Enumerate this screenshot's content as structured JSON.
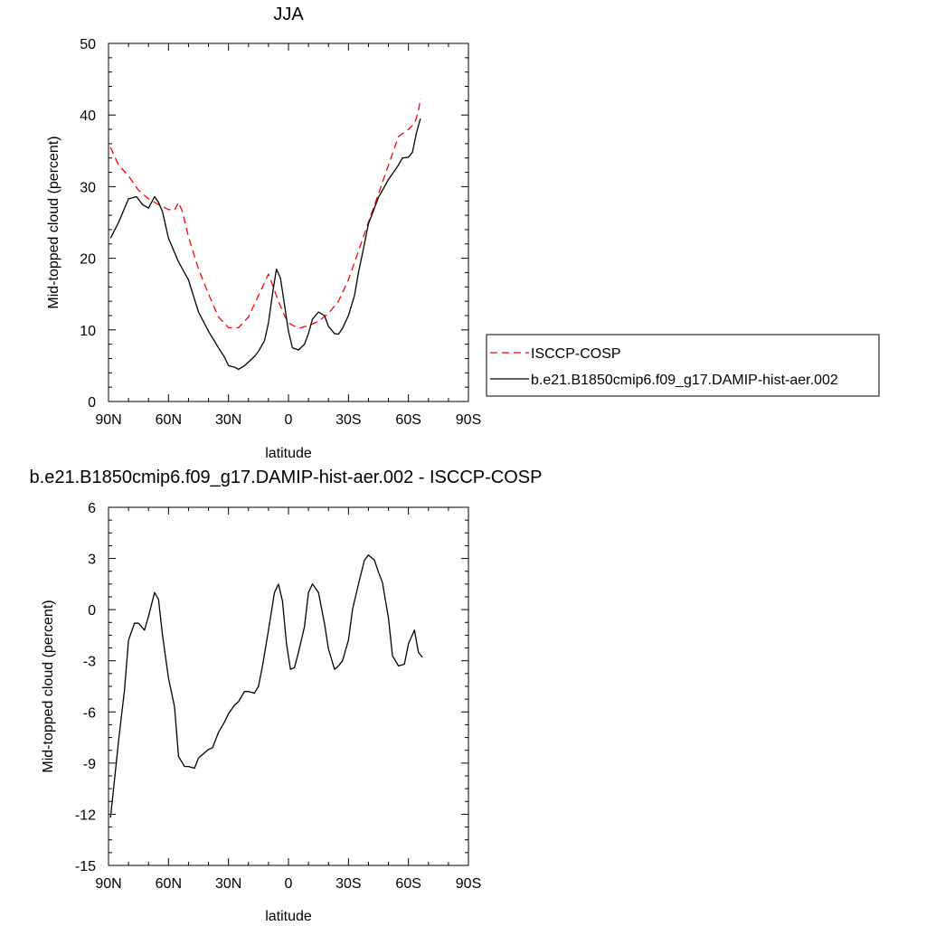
{
  "chart_data": [
    {
      "type": "line",
      "title": "JJA",
      "xlabel": "latitude",
      "ylabel": "Mid-topped cloud (percent)",
      "xlim": [
        90,
        -90
      ],
      "ylim": [
        0,
        50
      ],
      "x_ticks": [
        90,
        60,
        30,
        0,
        -30,
        -60,
        -90
      ],
      "x_tick_labels": [
        "90N",
        "60N",
        "30N",
        "0",
        "30S",
        "60S",
        "90S"
      ],
      "y_ticks": [
        0,
        10,
        20,
        30,
        40,
        50
      ],
      "y_tick_labels": [
        "0",
        "10",
        "20",
        "30",
        "40",
        "50"
      ],
      "legend_position": "right",
      "series": [
        {
          "name": "ISCCP-COSP",
          "color": "#ff0000",
          "dash": "dashed",
          "x": [
            89,
            85,
            80,
            75,
            70,
            65,
            60,
            57,
            55,
            53,
            50,
            45,
            40,
            35,
            30,
            25,
            20,
            15,
            10,
            5,
            2,
            0,
            -5,
            -10,
            -15,
            -20,
            -25,
            -30,
            -35,
            -40,
            -45,
            -50,
            -55,
            -60,
            -63,
            -65,
            -66
          ],
          "y": [
            35.5,
            33.0,
            31.5,
            29.5,
            28.3,
            27.5,
            26.8,
            26.7,
            27.8,
            26.5,
            23.0,
            18.5,
            15.0,
            11.8,
            10.3,
            10.3,
            11.8,
            14.8,
            17.8,
            14.0,
            12.0,
            11.0,
            10.2,
            10.6,
            11.2,
            12.3,
            14.0,
            17.0,
            21.0,
            25.0,
            29.0,
            33.0,
            37.0,
            38.0,
            38.8,
            40.5,
            42.3
          ]
        },
        {
          "name": "b.e21.B1850cmip6.f09_g17.DAMIP-hist-aer.002",
          "color": "#000000",
          "dash": "solid",
          "x": [
            89,
            85,
            80,
            76,
            73,
            70,
            67,
            65,
            63,
            60,
            55,
            50,
            45,
            40,
            35,
            32,
            30,
            27,
            25,
            22,
            20,
            17,
            15,
            12,
            10,
            8,
            6,
            4,
            2,
            0,
            -2,
            -5,
            -8,
            -10,
            -12,
            -15,
            -18,
            -20,
            -23,
            -25,
            -27,
            -30,
            -33,
            -35,
            -38,
            -40,
            -45,
            -50,
            -55,
            -57,
            -60,
            -62,
            -64,
            -66
          ],
          "y": [
            22.8,
            25.0,
            28.3,
            28.6,
            27.5,
            27.0,
            28.6,
            27.8,
            26.5,
            22.8,
            19.5,
            17.0,
            12.5,
            9.8,
            7.5,
            6.2,
            5.0,
            4.8,
            4.5,
            5.0,
            5.5,
            6.3,
            7.0,
            8.5,
            11.0,
            15.0,
            18.5,
            17.2,
            13.5,
            9.8,
            7.5,
            7.2,
            8.0,
            9.5,
            11.5,
            12.5,
            12.0,
            10.5,
            9.5,
            9.4,
            10.2,
            12.0,
            14.8,
            18.0,
            22.0,
            24.8,
            28.5,
            31.0,
            33.0,
            34.0,
            34.1,
            34.8,
            37.5,
            39.5
          ]
        }
      ]
    },
    {
      "type": "line",
      "title": "b.e21.B1850cmip6.f09_g17.DAMIP-hist-aer.002 - ISCCP-COSP",
      "xlabel": "latitude",
      "ylabel": "Mid-topped cloud (percent)",
      "xlim": [
        90,
        -90
      ],
      "ylim": [
        -15,
        6
      ],
      "x_ticks": [
        90,
        60,
        30,
        0,
        -30,
        -60,
        -90
      ],
      "x_tick_labels": [
        "90N",
        "60N",
        "30N",
        "0",
        "30S",
        "60S",
        "90S"
      ],
      "y_ticks": [
        -15,
        -12,
        -9,
        -6,
        -3,
        0,
        3,
        6
      ],
      "y_tick_labels": [
        "-15",
        "-12",
        "-9",
        "-6",
        "-3",
        "0",
        "3",
        "6"
      ],
      "series": [
        {
          "color": "#000000",
          "dash": "solid",
          "x": [
            89,
            87,
            85,
            82,
            80,
            77,
            75,
            72,
            70,
            67,
            65,
            63,
            60,
            57,
            55,
            52,
            50,
            47,
            45,
            42,
            40,
            38,
            35,
            32,
            30,
            27,
            25,
            22,
            20,
            17,
            15,
            13,
            10,
            7,
            5,
            3,
            1,
            -1,
            -3,
            -5,
            -8,
            -10,
            -12,
            -15,
            -18,
            -20,
            -23,
            -25,
            -27,
            -30,
            -32,
            -35,
            -38,
            -40,
            -43,
            -45,
            -47,
            -50,
            -52,
            -55,
            -58,
            -60,
            -63,
            -65,
            -67
          ],
          "y": [
            -12.2,
            -10.0,
            -7.7,
            -4.7,
            -1.8,
            -0.8,
            -0.8,
            -1.2,
            -0.4,
            1.0,
            0.6,
            -1.5,
            -4.0,
            -5.7,
            -8.6,
            -9.2,
            -9.2,
            -9.3,
            -8.7,
            -8.4,
            -8.2,
            -8.1,
            -7.2,
            -6.6,
            -6.1,
            -5.6,
            -5.4,
            -4.8,
            -4.8,
            -4.9,
            -4.5,
            -3.3,
            -1.2,
            1.0,
            1.5,
            0.5,
            -2.0,
            -3.5,
            -3.4,
            -2.5,
            -1.0,
            1.0,
            1.5,
            1.0,
            -0.8,
            -2.3,
            -3.5,
            -3.3,
            -3.0,
            -1.8,
            0.0,
            1.5,
            2.9,
            3.2,
            2.9,
            2.2,
            1.6,
            -0.5,
            -2.7,
            -3.3,
            -3.2,
            -2.0,
            -1.2,
            -2.5,
            -2.8
          ]
        }
      ]
    }
  ]
}
